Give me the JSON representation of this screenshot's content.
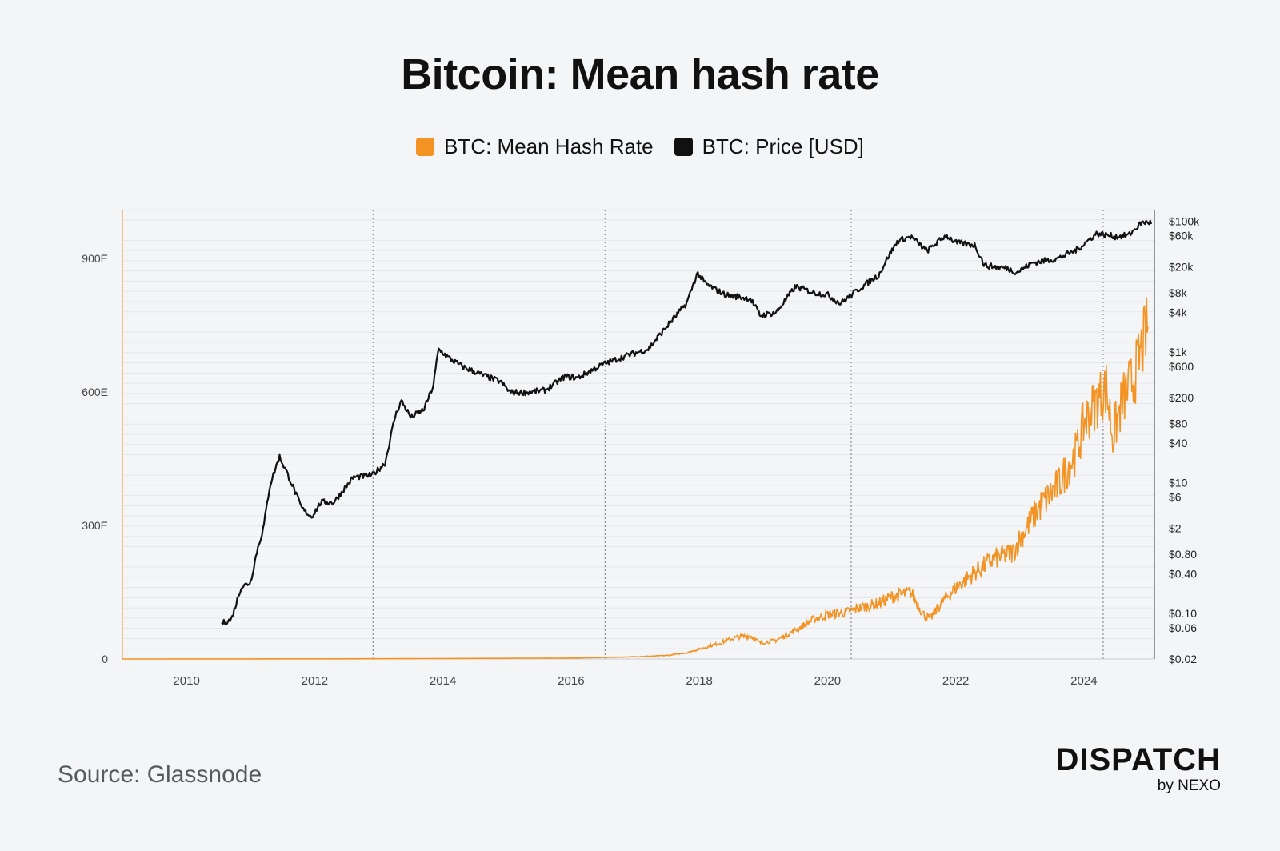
{
  "title": "Bitcoin: Mean hash rate",
  "legend": [
    {
      "label": "BTC: Mean Hash Rate",
      "color": "#f39323"
    },
    {
      "label": "BTC: Price [USD]",
      "color": "#111111"
    }
  ],
  "source": "Source: Glassnode",
  "logo": {
    "main": "DISPATCH",
    "sub": "by NEXO"
  },
  "chart_data": {
    "type": "line",
    "title": "Bitcoin: Mean hash rate",
    "x_ticks": [
      "2010",
      "2012",
      "2014",
      "2016",
      "2018",
      "2020",
      "2022",
      "2024"
    ],
    "x_range": [
      2009.0,
      2025.1
    ],
    "y_left": {
      "ticks": [
        0,
        300,
        600,
        900
      ],
      "tick_labels": [
        "0",
        "300E",
        "600E",
        "900E"
      ],
      "range": [
        0,
        1010
      ]
    },
    "y_right": {
      "scale": "log",
      "range": [
        0.02,
        150000
      ],
      "ticks": [
        100000,
        60000,
        20000,
        8000,
        4000,
        1000,
        600,
        200,
        80,
        40,
        10,
        6,
        2,
        0.8,
        0.4,
        0.1,
        0.06,
        0.02
      ],
      "tick_labels": [
        "$100k",
        "$60k",
        "$20k",
        "$8k",
        "$4k",
        "$1k",
        "$600",
        "$200",
        "$80",
        "$40",
        "$10",
        "$6",
        "$2",
        "$0.80",
        "$0.40",
        "$0.10",
        "$0.06",
        "$0.02"
      ]
    },
    "halvings": [
      2012.91,
      2016.53,
      2020.37,
      2024.3
    ],
    "grid": true,
    "legend_position": "top-center",
    "series": [
      {
        "name": "BTC: Mean Hash Rate",
        "axis": "left",
        "color": "#f39323",
        "x": [
          2009.0,
          2013.0,
          2016.0,
          2017.0,
          2017.5,
          2017.8,
          2018.0,
          2018.3,
          2018.6,
          2018.8,
          2018.95,
          2019.2,
          2019.5,
          2019.8,
          2020.0,
          2020.3,
          2020.5,
          2020.8,
          2021.0,
          2021.3,
          2021.5,
          2021.6,
          2021.8,
          2022.0,
          2022.3,
          2022.6,
          2022.9,
          2023.0,
          2023.3,
          2023.6,
          2023.9,
          2024.0,
          2024.2,
          2024.35,
          2024.45,
          2024.6,
          2024.8,
          2025.0
        ],
        "values": [
          0,
          0.5,
          2,
          5,
          8,
          14,
          22,
          35,
          50,
          52,
          36,
          42,
          65,
          90,
          100,
          105,
          115,
          125,
          140,
          150,
          100,
          90,
          130,
          160,
          195,
          225,
          240,
          270,
          340,
          390,
          470,
          530,
          580,
          610,
          500,
          580,
          640,
          750
        ]
      },
      {
        "name": "BTC: Price [USD]",
        "axis": "right",
        "color": "#111111",
        "x": [
          2010.55,
          2010.7,
          2010.85,
          2011.0,
          2011.1,
          2011.2,
          2011.3,
          2011.45,
          2011.6,
          2011.8,
          2011.95,
          2012.1,
          2012.3,
          2012.6,
          2012.9,
          2013.1,
          2013.25,
          2013.35,
          2013.5,
          2013.7,
          2013.85,
          2013.93,
          2014.1,
          2014.3,
          2014.6,
          2014.9,
          2015.05,
          2015.3,
          2015.6,
          2015.9,
          2016.1,
          2016.5,
          2016.9,
          2017.2,
          2017.5,
          2017.8,
          2017.97,
          2018.1,
          2018.4,
          2018.8,
          2018.95,
          2019.2,
          2019.5,
          2019.8,
          2020.0,
          2020.2,
          2020.5,
          2020.8,
          2020.95,
          2021.1,
          2021.3,
          2021.55,
          2021.85,
          2022.0,
          2022.3,
          2022.45,
          2022.8,
          2022.95,
          2023.2,
          2023.6,
          2023.9,
          2024.2,
          2024.5,
          2024.7,
          2024.9,
          2025.05
        ],
        "values": [
          0.07,
          0.08,
          0.25,
          0.3,
          0.9,
          2,
          9,
          25,
          12,
          4,
          3,
          5,
          5,
          12,
          13,
          20,
          100,
          180,
          100,
          130,
          300,
          1100,
          800,
          600,
          450,
          350,
          240,
          240,
          260,
          420,
          400,
          650,
          900,
          1100,
          2500,
          5500,
          16000,
          11000,
          7500,
          6500,
          3600,
          4000,
          10000,
          8000,
          7500,
          5500,
          9300,
          15000,
          29000,
          50000,
          58000,
          35000,
          61000,
          47000,
          43000,
          21000,
          19000,
          16500,
          23000,
          27000,
          37000,
          65000,
          58000,
          61000,
          95000,
          96000
        ]
      }
    ]
  }
}
